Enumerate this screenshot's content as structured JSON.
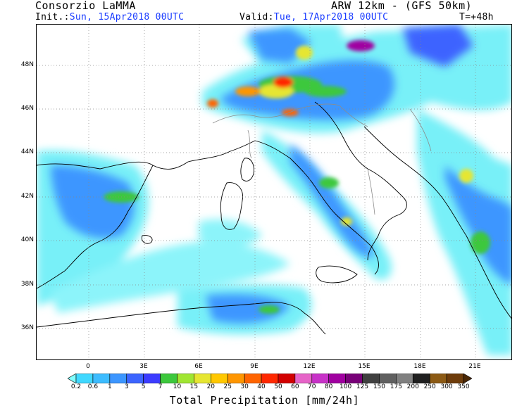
{
  "header": {
    "producer": "Consorzio LaMMA",
    "model": "ARW 12km - (GFS 50km)",
    "init_label": "Init.:",
    "init_value": "Sun, 15Apr2018 00UTC",
    "valid_label": "Valid:",
    "valid_value": "Tue, 17Apr2018 00UTC",
    "timestep": "T=+48h"
  },
  "map": {
    "lat_labels": [
      "48N",
      "46N",
      "44N",
      "42N",
      "40N",
      "38N",
      "36N"
    ],
    "lon_labels": [
      "0",
      "3E",
      "6E",
      "9E",
      "12E",
      "15E",
      "18E",
      "21E"
    ]
  },
  "legend": {
    "title": "Total Precipitation [mm/24h]",
    "values": [
      "0.2",
      "0.6",
      "1",
      "3",
      "5",
      "7",
      "10",
      "15",
      "20",
      "25",
      "30",
      "40",
      "50",
      "60",
      "70",
      "80",
      "100",
      "125",
      "150",
      "175",
      "200",
      "250",
      "300",
      "350"
    ],
    "colors": [
      "#80ffff",
      "#40d8ff",
      "#3cbcff",
      "#3c96ff",
      "#3c64ff",
      "#3c3cff",
      "#3cc83c",
      "#a0e632",
      "#e6e632",
      "#ffc800",
      "#ff9600",
      "#ff6400",
      "#ff2800",
      "#d20000",
      "#e664c8",
      "#c832c8",
      "#a000a0",
      "#780078",
      "#404040",
      "#606060",
      "#808080",
      "#202020",
      "#8c5a14",
      "#6e3c0a",
      "#4a2806"
    ]
  }
}
